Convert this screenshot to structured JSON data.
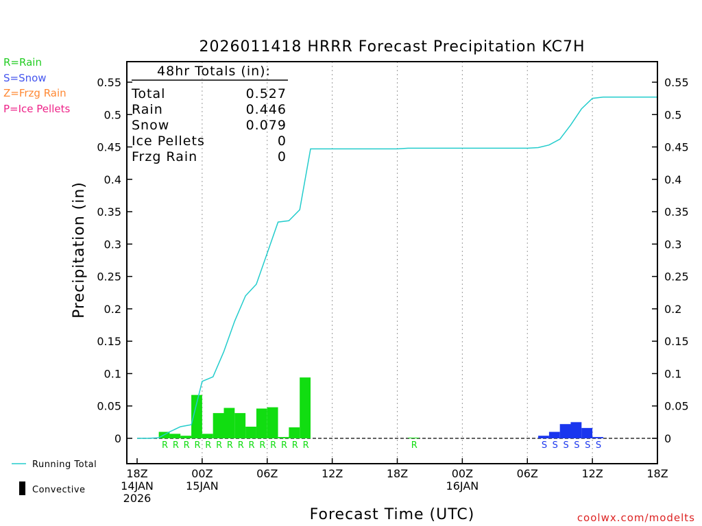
{
  "title": "2026011418 HRRR Forecast Precipitation KC7H",
  "ptype_legend": [
    {
      "text": "R=Rain",
      "color": "#22cc22"
    },
    {
      "text": "S=Snow",
      "color": "#4455ee"
    },
    {
      "text": "Z=Frzg Rain",
      "color": "#ff8833"
    },
    {
      "text": "P=Ice Pellets",
      "color": "#ee2288"
    }
  ],
  "totals": {
    "header": "48hr Totals (in):",
    "rows": [
      {
        "label": "Total",
        "value": "0.527"
      },
      {
        "label": "Rain",
        "value": "0.446"
      },
      {
        "label": "Snow",
        "value": "0.079"
      },
      {
        "label": "Ice Pellets",
        "value": "0"
      },
      {
        "label": "Frzg Rain",
        "value": "0"
      }
    ]
  },
  "bottom_legend": {
    "running_total": "Running Total",
    "convective": "Convective"
  },
  "credit": "coolwx.com/modelts",
  "colors": {
    "rain": "#11dd11",
    "snow": "#1a36ee",
    "running_total": "#22cccc",
    "grid": "#999999"
  },
  "chart_data": {
    "type": "bar",
    "title": "2026011418 HRRR Forecast Precipitation KC7H",
    "xlabel": "Forecast Time (UTC)",
    "ylabel": "Precipitation (in)",
    "xlim": [
      0,
      48
    ],
    "ylim": [
      -0.04,
      0.58
    ],
    "yticks": [
      "0",
      "0.05",
      "0.1",
      "0.15",
      "0.2",
      "0.25",
      "0.3",
      "0.35",
      "0.4",
      "0.45",
      "0.5",
      "0.55"
    ],
    "xticks": [
      {
        "hour": 0,
        "lines": [
          "18Z",
          "14JAN",
          "2026"
        ]
      },
      {
        "hour": 6,
        "lines": [
          "00Z",
          "15JAN"
        ]
      },
      {
        "hour": 12,
        "lines": [
          "06Z"
        ]
      },
      {
        "hour": 18,
        "lines": [
          "12Z"
        ]
      },
      {
        "hour": 24,
        "lines": [
          "18Z"
        ]
      },
      {
        "hour": 30,
        "lines": [
          "00Z",
          "16JAN"
        ]
      },
      {
        "hour": 36,
        "lines": [
          "06Z"
        ]
      },
      {
        "hour": 42,
        "lines": [
          "12Z"
        ]
      },
      {
        "hour": 48,
        "lines": [
          "18Z"
        ]
      }
    ],
    "grid": "dotted vertical",
    "hours": [
      1,
      2,
      3,
      4,
      5,
      6,
      7,
      8,
      9,
      10,
      11,
      12,
      13,
      14,
      15,
      16,
      17,
      18,
      19,
      20,
      21,
      22,
      23,
      24,
      25,
      26,
      27,
      28,
      29,
      30,
      31,
      32,
      33,
      34,
      35,
      36,
      37,
      38,
      39,
      40,
      41,
      42,
      43,
      44,
      45,
      46,
      47,
      48
    ],
    "series": [
      {
        "name": "Running Total",
        "type": "line",
        "values": [
          0,
          0.001,
          0.01,
          0.018,
          0.021,
          0.088,
          0.095,
          0.134,
          0.181,
          0.22,
          0.238,
          0.286,
          0.334,
          0.336,
          0.353,
          0.447,
          0.447,
          0.447,
          0.447,
          0.447,
          0.447,
          0.447,
          0.447,
          0.447,
          0.448,
          0.448,
          0.448,
          0.448,
          0.448,
          0.448,
          0.448,
          0.448,
          0.448,
          0.448,
          0.448,
          0.448,
          0.449,
          0.453,
          0.462,
          0.484,
          0.509,
          0.525,
          0.527,
          0.527,
          0.527,
          0.527,
          0.527,
          0.527
        ]
      }
    ],
    "bars": [
      {
        "hour": 3,
        "value": 0.01,
        "ptype": "rain",
        "label": "R"
      },
      {
        "hour": 4,
        "value": 0.007,
        "ptype": "rain",
        "label": "R"
      },
      {
        "hour": 5,
        "value": 0.004,
        "ptype": "rain",
        "label": "R"
      },
      {
        "hour": 6,
        "value": 0.067,
        "ptype": "rain",
        "label": "R"
      },
      {
        "hour": 7,
        "value": 0.007,
        "ptype": "rain",
        "label": "R"
      },
      {
        "hour": 8,
        "value": 0.039,
        "ptype": "rain",
        "label": "R"
      },
      {
        "hour": 9,
        "value": 0.047,
        "ptype": "rain",
        "label": "R"
      },
      {
        "hour": 10,
        "value": 0.039,
        "ptype": "rain",
        "label": "R"
      },
      {
        "hour": 11,
        "value": 0.018,
        "ptype": "rain",
        "label": "R"
      },
      {
        "hour": 12,
        "value": 0.046,
        "ptype": "rain",
        "label": "R"
      },
      {
        "hour": 13,
        "value": 0.048,
        "ptype": "rain",
        "label": "R"
      },
      {
        "hour": 14,
        "value": 0.002,
        "ptype": "rain",
        "label": "R"
      },
      {
        "hour": 15,
        "value": 0.017,
        "ptype": "rain",
        "label": "R"
      },
      {
        "hour": 16,
        "value": 0.094,
        "ptype": "rain",
        "label": "R"
      },
      {
        "hour": 26,
        "value": 0.0005,
        "ptype": "rain",
        "label": "R"
      },
      {
        "hour": 38,
        "value": 0.004,
        "ptype": "snow",
        "label": "S"
      },
      {
        "hour": 39,
        "value": 0.01,
        "ptype": "snow",
        "label": "S"
      },
      {
        "hour": 40,
        "value": 0.022,
        "ptype": "snow",
        "label": "S"
      },
      {
        "hour": 41,
        "value": 0.025,
        "ptype": "snow",
        "label": "S"
      },
      {
        "hour": 42,
        "value": 0.016,
        "ptype": "snow",
        "label": "S"
      },
      {
        "hour": 43,
        "value": 0.002,
        "ptype": "snow",
        "label": "S"
      }
    ]
  }
}
